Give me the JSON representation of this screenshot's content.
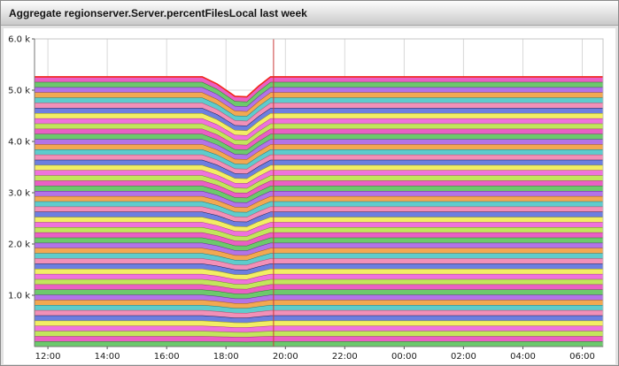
{
  "window": {
    "title": "Aggregate regionserver.Server.percentFilesLocal last week"
  },
  "chart_data": {
    "type": "area",
    "stacked": true,
    "title": "Aggregate regionserver.Server.percentFilesLocal last week",
    "xlabel": "",
    "ylabel": "",
    "ylim": [
      0,
      6000
    ],
    "x_range": [
      11.55,
      30.7
    ],
    "grid": true,
    "legend": "none",
    "y_ticks": [
      {
        "label": "1.0 k",
        "value": 1000
      },
      {
        "label": "2.0 k",
        "value": 2000
      },
      {
        "label": "3.0 k",
        "value": 3000
      },
      {
        "label": "4.0 k",
        "value": 4000
      },
      {
        "label": "5.0 k",
        "value": 5000
      },
      {
        "label": "6.0 k",
        "value": 6000
      }
    ],
    "x_ticks": [
      {
        "label": "12:00",
        "hour": 12
      },
      {
        "label": "14:00",
        "hour": 14
      },
      {
        "label": "16:00",
        "hour": 16
      },
      {
        "label": "18:00",
        "hour": 18
      },
      {
        "label": "20:00",
        "hour": 20
      },
      {
        "label": "22:00",
        "hour": 22
      },
      {
        "label": "00:00",
        "hour": 24
      },
      {
        "label": "02:00",
        "hour": 26
      },
      {
        "label": "04:00",
        "hour": 28
      },
      {
        "label": "06:00",
        "hour": 30
      }
    ],
    "num_series": 52,
    "per_series_value_approx": 101,
    "x_hours": [
      11.55,
      17.2,
      17.7,
      18.3,
      18.7,
      19.1,
      19.5,
      30.7
    ],
    "stack_total": [
      5260,
      5260,
      5120,
      4880,
      4870,
      5080,
      5260,
      5260
    ],
    "now_marker_hour": 19.6,
    "colors": {
      "top_line": "#f2271a",
      "now_line": "#cc3a3a",
      "grid": "#d9d9d9",
      "axis": "#777777",
      "plot_border": "#c4c4c4",
      "palette": [
        {
          "fill": "#6cc96c",
          "edge": "#2e7d2e"
        },
        {
          "fill": "#ea5fc4",
          "edge": "#98337c"
        },
        {
          "fill": "#c2e55c",
          "edge": "#6f8f26"
        },
        {
          "fill": "#ef72dc",
          "edge": "#9c3a8c"
        },
        {
          "fill": "#f2ee64",
          "edge": "#909020"
        },
        {
          "fill": "#6d7fe0",
          "edge": "#141e50"
        },
        {
          "fill": "#f290b8",
          "edge": "#b04a70"
        },
        {
          "fill": "#5ecccc",
          "edge": "#247878"
        },
        {
          "fill": "#f2a852",
          "edge": "#a05c14"
        },
        {
          "fill": "#b273e8",
          "edge": "#5c2f90"
        }
      ]
    }
  }
}
